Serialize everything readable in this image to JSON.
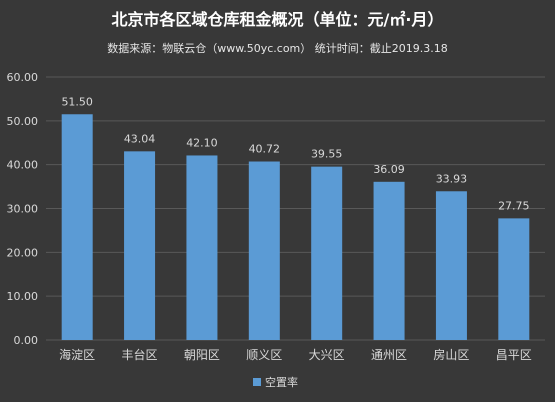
{
  "chart_data": {
    "type": "bar",
    "title": "北京市各区域仓库租金概况（单位：元/㎡·月）",
    "subtitle": "数据来源：物联云仓（www.50yc.com） 统计时间：截止2019.3.18",
    "categories": [
      "海淀区",
      "丰台区",
      "朝阳区",
      "顺义区",
      "大兴区",
      "通州区",
      "房山区",
      "昌平区"
    ],
    "series": [
      {
        "name": "空置率",
        "values": [
          51.5,
          43.04,
          42.1,
          40.72,
          39.55,
          36.09,
          33.93,
          27.75
        ],
        "labels": [
          "51.50",
          "43.04",
          "42.10",
          "40.72",
          "39.55",
          "36.09",
          "33.93",
          "27.75"
        ]
      }
    ],
    "y_ticks": [
      "0.00",
      "10.00",
      "20.00",
      "30.00",
      "40.00",
      "50.00",
      "60.00"
    ],
    "ylim": [
      0,
      60
    ],
    "grid": true,
    "legend_position": "bottom",
    "colors": {
      "background": "#383838",
      "bar": "#5b9bd5",
      "grid": "#595959",
      "text": "#d9d9d9",
      "title": "#ffffff"
    }
  }
}
